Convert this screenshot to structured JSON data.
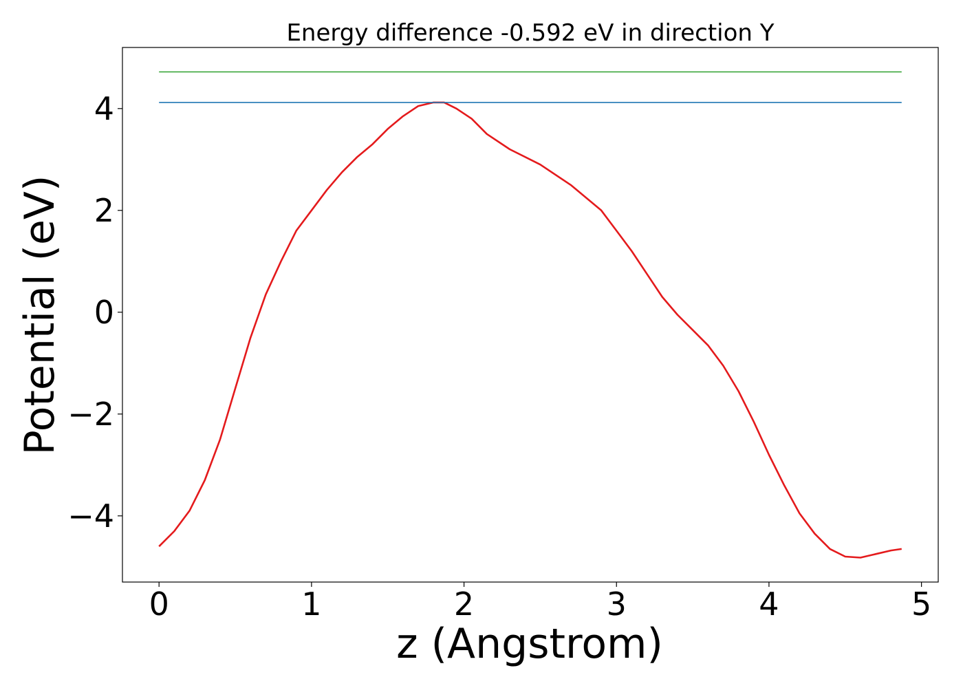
{
  "chart_data": {
    "type": "line",
    "title": "Energy difference -0.592 eV in direction Y",
    "xlabel": "z (Angstrom)",
    "ylabel": "Potential (eV)",
    "xlim": [
      -0.24,
      5.11
    ],
    "ylim": [
      -5.3,
      5.2
    ],
    "x_ticks": [
      0,
      1,
      2,
      3,
      4,
      5
    ],
    "y_ticks": [
      -4,
      -2,
      0,
      2,
      4
    ],
    "x_tick_labels": [
      "0",
      "1",
      "2",
      "3",
      "4",
      "5"
    ],
    "y_tick_labels": [
      "−4",
      "−2",
      "0",
      "2",
      "4"
    ],
    "grid": false,
    "legend": "none",
    "series": [
      {
        "color": "#e41a1c",
        "x": [
          0,
          0.1,
          0.2,
          0.3,
          0.4,
          0.5,
          0.6,
          0.7,
          0.8,
          0.9,
          1.0,
          1.1,
          1.2,
          1.3,
          1.4,
          1.5,
          1.6,
          1.7,
          1.8,
          1.87,
          1.95,
          2.05,
          2.15,
          2.3,
          2.5,
          2.7,
          2.9,
          3.0,
          3.1,
          3.2,
          3.3,
          3.4,
          3.5,
          3.6,
          3.7,
          3.8,
          3.9,
          4.0,
          4.1,
          4.2,
          4.3,
          4.4,
          4.5,
          4.6,
          4.7,
          4.8,
          4.87
        ],
        "y": [
          -4.6,
          -4.3,
          -3.9,
          -3.3,
          -2.5,
          -1.5,
          -0.5,
          0.35,
          1.0,
          1.6,
          2.0,
          2.4,
          2.75,
          3.05,
          3.3,
          3.6,
          3.85,
          4.05,
          4.12,
          4.12,
          4.0,
          3.8,
          3.5,
          3.2,
          2.9,
          2.5,
          2.0,
          1.6,
          1.2,
          0.75,
          0.3,
          -0.05,
          -0.35,
          -0.65,
          -1.05,
          -1.55,
          -2.15,
          -2.8,
          -3.4,
          -3.95,
          -4.35,
          -4.65,
          -4.8,
          -4.82,
          -4.75,
          -4.68,
          -4.65
        ]
      },
      {
        "color": "#1f77b4",
        "x": [
          0,
          4.87
        ],
        "y": [
          4.12,
          4.12
        ]
      },
      {
        "color": "#2ca02c",
        "x": [
          0,
          4.87
        ],
        "y": [
          4.72,
          4.72
        ]
      }
    ]
  }
}
